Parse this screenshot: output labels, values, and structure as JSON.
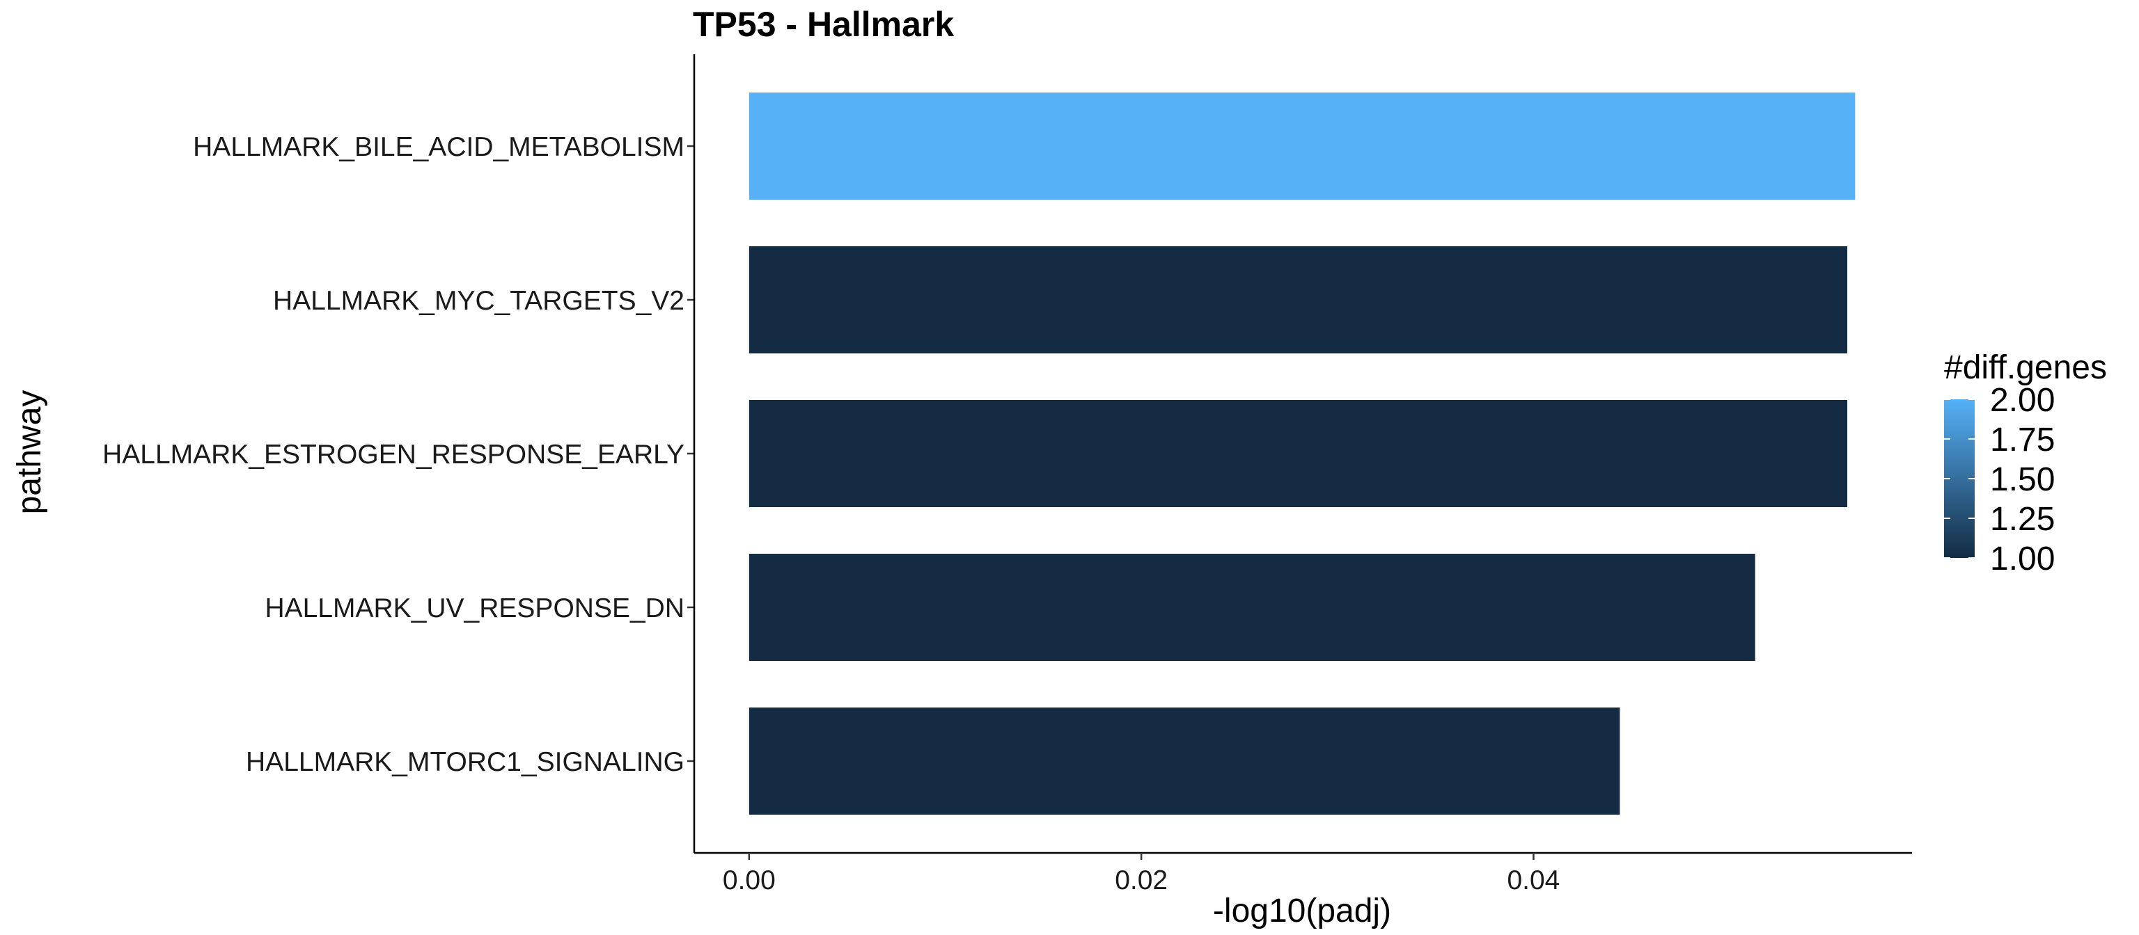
{
  "chart_data": {
    "type": "bar",
    "orientation": "horizontal",
    "title": "TP53 - Hallmark",
    "xlabel": "-log10(padj)",
    "ylabel": "pathway",
    "categories": [
      "HALLMARK_BILE_ACID_METABOLISM",
      "HALLMARK_MYC_TARGETS_V2",
      "HALLMARK_ESTROGEN_RESPONSE_EARLY",
      "HALLMARK_UV_RESPONSE_DN",
      "HALLMARK_MTORC1_SIGNALING"
    ],
    "values": [
      0.0564,
      0.056,
      0.056,
      0.0513,
      0.0444
    ],
    "diff_genes": [
      2,
      1,
      1,
      1,
      1
    ],
    "xlim": [
      -0.0028,
      0.0593
    ],
    "x_ticks": [
      0.0,
      0.02,
      0.04
    ],
    "x_tick_labels": [
      "0.00",
      "0.02",
      "0.04"
    ],
    "grid": false,
    "legend": {
      "title": "#diff.genes",
      "type": "colorbar",
      "position": "right",
      "min": 1.0,
      "max": 2.0,
      "breaks": [
        2.0,
        1.75,
        1.5,
        1.25,
        1.0
      ],
      "labels": [
        "2.00",
        "1.75",
        "1.50",
        "1.25",
        "1.00"
      ],
      "color_low": "#132B43",
      "color_high": "#56B1F7"
    }
  }
}
